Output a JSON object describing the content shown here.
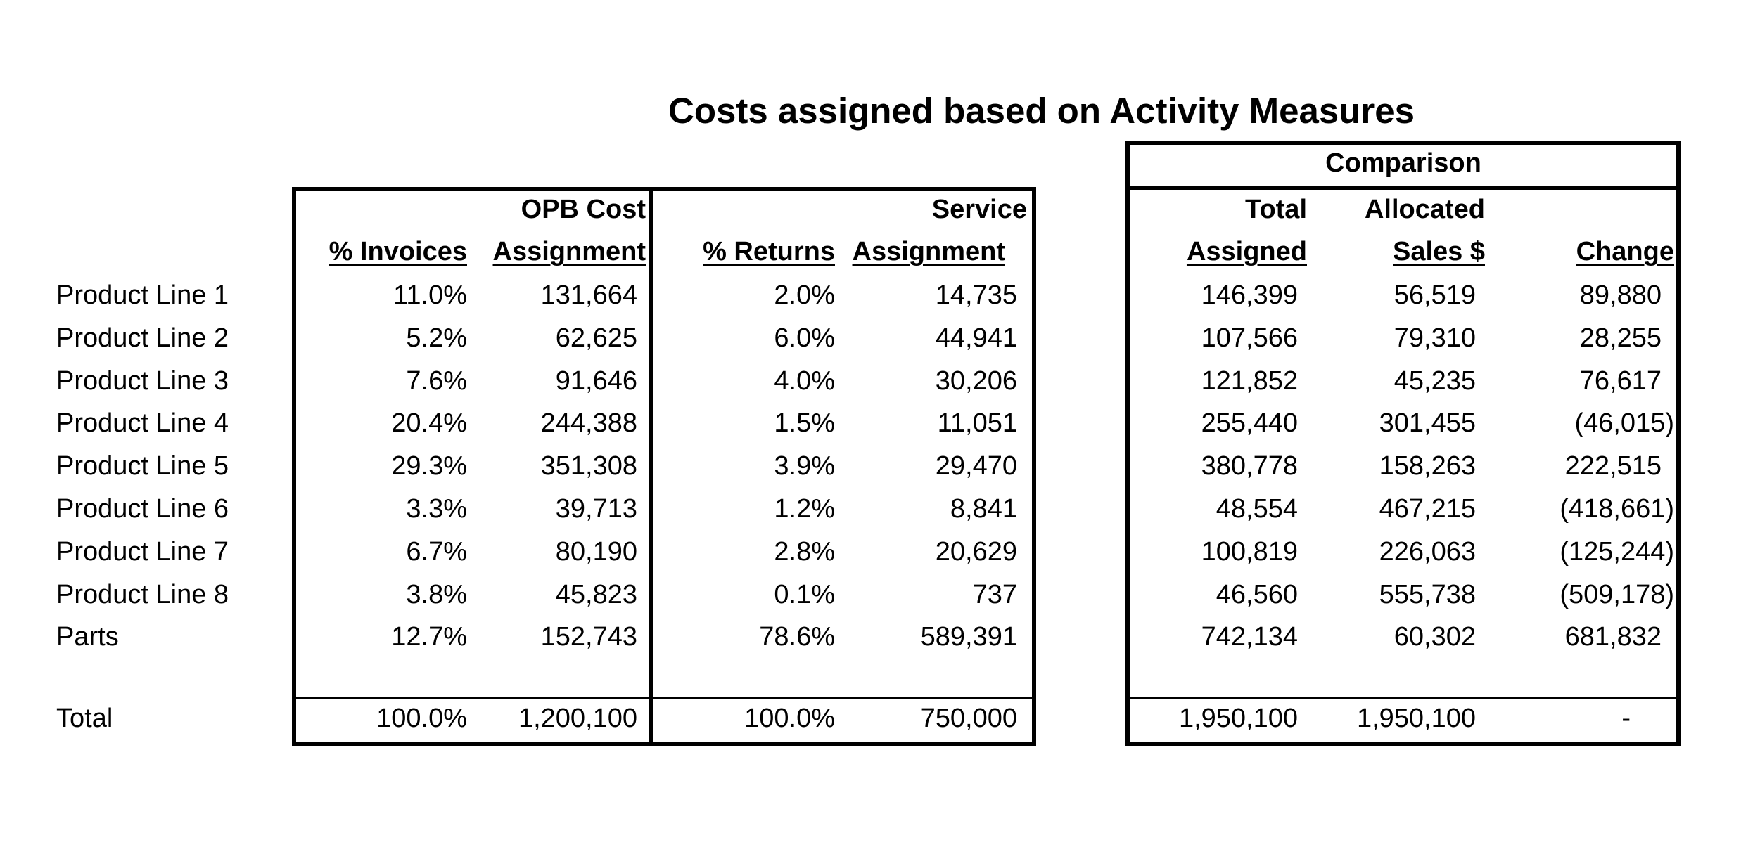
{
  "title": "Costs assigned based on Activity Measures",
  "comparison_label": "Comparison",
  "headers": {
    "invoices": {
      "line1": "",
      "line2": "% Invoices"
    },
    "opb": {
      "line1": "OPB Cost",
      "line2": "Assignment"
    },
    "returns": {
      "line1": "",
      "line2": "% Returns"
    },
    "service": {
      "line1": "Service",
      "line2": "Assignment"
    },
    "total": {
      "line1": "Total",
      "line2": "Assigned"
    },
    "sales": {
      "line1": "Allocated",
      "line2": "Sales $"
    },
    "change": {
      "line1": "",
      "line2": "Change"
    }
  },
  "rows": [
    {
      "label": "Product Line 1",
      "invoices": "11.0%",
      "opb": "131,664",
      "returns": "2.0%",
      "service": "14,735",
      "total": "146,399",
      "sales": "56,519",
      "change": "89,880"
    },
    {
      "label": "Product Line 2",
      "invoices": "5.2%",
      "opb": "62,625",
      "returns": "6.0%",
      "service": "44,941",
      "total": "107,566",
      "sales": "79,310",
      "change": "28,255"
    },
    {
      "label": "Product Line 3",
      "invoices": "7.6%",
      "opb": "91,646",
      "returns": "4.0%",
      "service": "30,206",
      "total": "121,852",
      "sales": "45,235",
      "change": "76,617"
    },
    {
      "label": "Product Line 4",
      "invoices": "20.4%",
      "opb": "244,388",
      "returns": "1.5%",
      "service": "11,051",
      "total": "255,440",
      "sales": "301,455",
      "change": "(46,015)"
    },
    {
      "label": "Product Line 5",
      "invoices": "29.3%",
      "opb": "351,308",
      "returns": "3.9%",
      "service": "29,470",
      "total": "380,778",
      "sales": "158,263",
      "change": "222,515"
    },
    {
      "label": "Product Line 6",
      "invoices": "3.3%",
      "opb": "39,713",
      "returns": "1.2%",
      "service": "8,841",
      "total": "48,554",
      "sales": "467,215",
      "change": "(418,661)"
    },
    {
      "label": "Product Line 7",
      "invoices": "6.7%",
      "opb": "80,190",
      "returns": "2.8%",
      "service": "20,629",
      "total": "100,819",
      "sales": "226,063",
      "change": "(125,244)"
    },
    {
      "label": "Product Line 8",
      "invoices": "3.8%",
      "opb": "45,823",
      "returns": "0.1%",
      "service": "737",
      "total": "46,560",
      "sales": "555,738",
      "change": "(509,178)"
    },
    {
      "label": "Parts",
      "invoices": "12.7%",
      "opb": "152,743",
      "returns": "78.6%",
      "service": "589,391",
      "total": "742,134",
      "sales": "60,302",
      "change": "681,832"
    }
  ],
  "total_row": {
    "label": "Total",
    "invoices": "100.0%",
    "opb": "1,200,100",
    "returns": "100.0%",
    "service": "750,000",
    "total": "1,950,100",
    "sales": "1,950,100",
    "change": "-"
  }
}
